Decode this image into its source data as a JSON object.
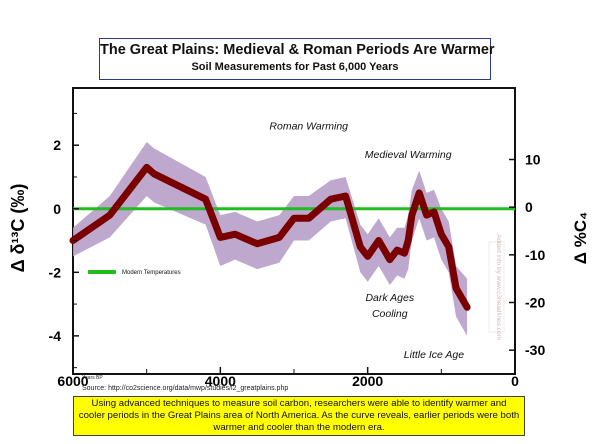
{
  "chart_data": {
    "type": "line",
    "title": "The Great Plains: Medieval & Roman Periods Are Warmer",
    "subtitle": "Soil Measurements for Past 6,000 Years",
    "xlabel": "Years BP",
    "ylabel_left": "Δ δ¹³C (‰)",
    "ylabel_right": "Δ %C₄",
    "xlim": [
      6000,
      0
    ],
    "ylim_left": [
      -5.2,
      3.8
    ],
    "ylim_right": [
      -35,
      25
    ],
    "x_ticks": [
      {
        "value": 6000,
        "label": "6000"
      },
      {
        "value": 4000,
        "label": "4000"
      },
      {
        "value": 2000,
        "label": "2000"
      },
      {
        "value": 0,
        "label": "0"
      }
    ],
    "y_ticks_left": [
      {
        "value": 2,
        "label": "2"
      },
      {
        "value": 0,
        "label": "0"
      },
      {
        "value": -2,
        "label": "-2"
      },
      {
        "value": -4,
        "label": "-4"
      }
    ],
    "y_ticks_right": [
      {
        "value": 10,
        "label": "10"
      },
      {
        "value": 0,
        "label": "0"
      },
      {
        "value": -10,
        "label": "-10"
      },
      {
        "value": -20,
        "label": "-20"
      },
      {
        "value": -30,
        "label": "-30"
      }
    ],
    "series": [
      {
        "name": "",
        "color": "#7a0000",
        "x": [
          6000,
          5500,
          5000,
          4900,
          4200,
          4000,
          3800,
          3500,
          3200,
          3000,
          2800,
          2500,
          2300,
          2100,
          2000,
          1850,
          1700,
          1600,
          1500,
          1450,
          1400,
          1300,
          1200,
          1100,
          1000,
          900,
          800,
          650
        ],
        "y": [
          -1.0,
          -0.2,
          1.3,
          1.1,
          0.3,
          -0.9,
          -0.8,
          -1.1,
          -0.9,
          -0.3,
          -0.3,
          0.3,
          0.4,
          -1.2,
          -1.5,
          -1.0,
          -1.6,
          -1.3,
          -1.4,
          -1.0,
          -0.2,
          0.5,
          -0.2,
          -0.1,
          -0.8,
          -1.2,
          -2.5,
          -3.1
        ],
        "band_upper": [
          -0.6,
          0.4,
          2.1,
          1.9,
          1.0,
          -0.2,
          -0.1,
          -0.4,
          -0.2,
          0.4,
          0.4,
          0.9,
          1.0,
          -0.5,
          -0.8,
          -0.3,
          -0.9,
          -0.6,
          -0.6,
          -0.2,
          0.6,
          1.2,
          0.5,
          0.6,
          0.0,
          -0.4,
          -1.8,
          -2.2
        ],
        "band_lower": [
          -1.5,
          -0.9,
          0.4,
          0.2,
          -0.5,
          -1.8,
          -1.6,
          -1.9,
          -1.7,
          -1.0,
          -1.0,
          -0.4,
          -0.3,
          -2.0,
          -2.3,
          -1.8,
          -2.4,
          -2.1,
          -2.2,
          -1.9,
          -1.0,
          -0.3,
          -1.0,
          -0.9,
          -1.6,
          -2.0,
          -3.4,
          -4.0
        ],
        "band_color": "#b79ec9"
      }
    ],
    "reference_line": {
      "value": 0,
      "color": "#22bb22"
    },
    "annotations": [
      {
        "text": "Roman Warming",
        "x": 2800,
        "y": 2.5
      },
      {
        "text": "Medieval Warming",
        "x": 1450,
        "y": 1.6
      },
      {
        "text": "Dark Ages",
        "x": 1700,
        "y": -2.9
      },
      {
        "text": "Cooling",
        "x": 1700,
        "y": -3.4
      },
      {
        "text": "Little Ice Age",
        "x": 1100,
        "y": -4.7
      }
    ],
    "legend": [
      {
        "label": "Modern Temperatures",
        "color": "#22bb22"
      }
    ],
    "legend_position": "left",
    "grid": false
  },
  "source": "Source:  http://co2science.org/data/mwp/studies/l2_greatplains.php",
  "caption": "Using advanced techniques to measure soil carbon, researchers were able to identify warmer and cooler periods in the Great Plains area of North America. As the curve reveals, earlier periods were both warmer and cooler than the modern era.",
  "watermark": "Added info by www.c3headlines.com"
}
